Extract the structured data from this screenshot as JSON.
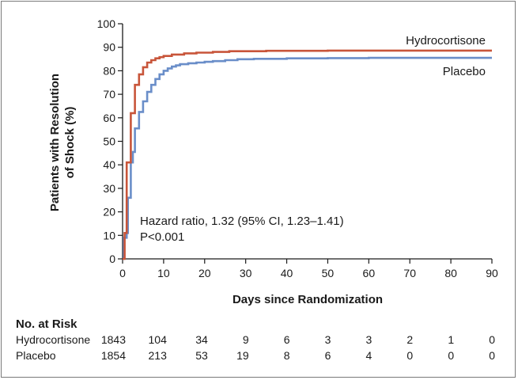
{
  "chart_data": {
    "type": "line",
    "subtype": "kaplan-meier-step",
    "ylabel_line1": "Patients with Resolution",
    "ylabel_line2": "of Shock (%)",
    "xlabel": "Days since Randomization",
    "xlim": [
      0,
      90
    ],
    "ylim": [
      0,
      100
    ],
    "x_ticks": [
      0,
      10,
      20,
      30,
      40,
      50,
      60,
      70,
      80,
      90
    ],
    "y_ticks": [
      0,
      10,
      20,
      30,
      40,
      50,
      60,
      70,
      80,
      90,
      100
    ],
    "grid": false,
    "series": [
      {
        "name": "Hydrocortisone",
        "color": "#c8553a",
        "points": [
          [
            0,
            0
          ],
          [
            0.5,
            11
          ],
          [
            1,
            41
          ],
          [
            2,
            62
          ],
          [
            3,
            74
          ],
          [
            4,
            78.5
          ],
          [
            5,
            81.5
          ],
          [
            6,
            83.5
          ],
          [
            7,
            84.5
          ],
          [
            8,
            85.3
          ],
          [
            9,
            85.8
          ],
          [
            10,
            86.3
          ],
          [
            12,
            86.9
          ],
          [
            15,
            87.4
          ],
          [
            18,
            87.7
          ],
          [
            22,
            88
          ],
          [
            26,
            88.3
          ],
          [
            35,
            88.5
          ],
          [
            50,
            88.6
          ],
          [
            70,
            88.6
          ],
          [
            90,
            88.6
          ]
        ]
      },
      {
        "name": "Placebo",
        "color": "#6a8ec9",
        "points": [
          [
            0,
            0
          ],
          [
            0.3,
            9
          ],
          [
            1,
            11
          ],
          [
            1.3,
            26
          ],
          [
            2,
            41
          ],
          [
            2.5,
            45.5
          ],
          [
            3,
            55.5
          ],
          [
            4,
            62.5
          ],
          [
            5,
            67
          ],
          [
            6,
            71
          ],
          [
            7,
            74
          ],
          [
            8,
            76.5
          ],
          [
            9,
            78.5
          ],
          [
            10,
            80
          ],
          [
            11,
            81
          ],
          [
            12,
            81.8
          ],
          [
            13,
            82.3
          ],
          [
            14,
            82.8
          ],
          [
            16,
            83.2
          ],
          [
            18,
            83.5
          ],
          [
            20,
            83.8
          ],
          [
            22,
            84.1
          ],
          [
            25,
            84.5
          ],
          [
            28,
            84.9
          ],
          [
            32,
            85.1
          ],
          [
            40,
            85.3
          ],
          [
            50,
            85.4
          ],
          [
            60,
            85.5
          ],
          [
            75,
            85.5
          ],
          [
            90,
            85.5
          ]
        ]
      }
    ],
    "annotation_line1": "Hazard ratio, 1.32 (95% CI, 1.23–1.41)",
    "annotation_line2": "P<0.001"
  },
  "risk_table": {
    "title": "No. at Risk",
    "rows": [
      {
        "label": "Hydrocortisone",
        "values": [
          "1843",
          "104",
          "34",
          "9",
          "6",
          "3",
          "3",
          "2",
          "1",
          "0"
        ]
      },
      {
        "label": "Placebo",
        "values": [
          "1854",
          "213",
          "53",
          "19",
          "8",
          "6",
          "4",
          "0",
          "0",
          "0"
        ]
      }
    ]
  }
}
